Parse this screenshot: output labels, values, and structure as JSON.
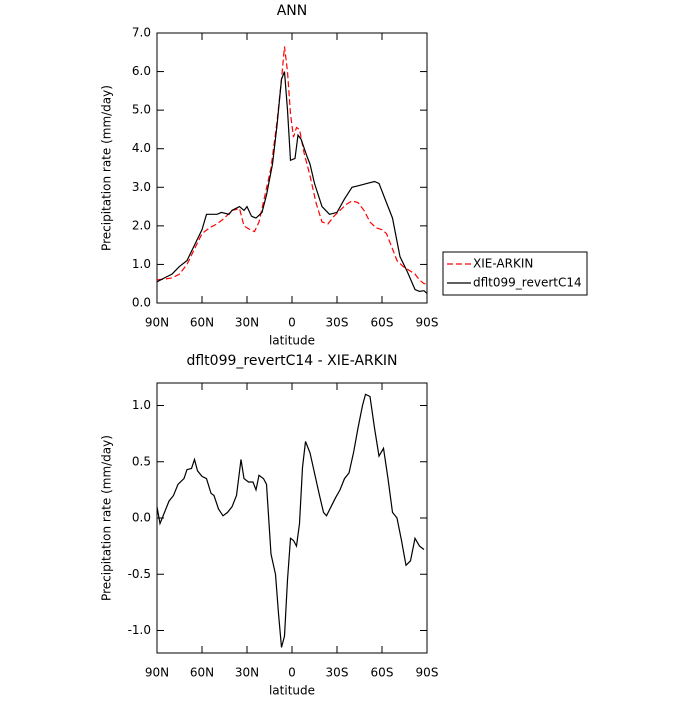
{
  "chart_data": [
    {
      "type": "line",
      "title": "ANN",
      "xlabel": "latitude",
      "ylabel": "Precipitation rate (mm/day)",
      "xlim": [
        90,
        -90
      ],
      "ylim": [
        0,
        7
      ],
      "xticks": [
        {
          "value": 90,
          "label": "90N"
        },
        {
          "value": 60,
          "label": "60N"
        },
        {
          "value": 30,
          "label": "30N"
        },
        0,
        {
          "value": -30,
          "label": "30S"
        },
        {
          "value": -60,
          "label": "60S"
        },
        {
          "value": -90,
          "label": "90S"
        }
      ],
      "yticks": [
        {
          "value": 0,
          "label": "0.0"
        },
        {
          "value": 1,
          "label": "1.0"
        },
        {
          "value": 2,
          "label": "2.0"
        },
        {
          "value": 3,
          "label": "3.0"
        },
        {
          "value": 4,
          "label": "4.0"
        },
        {
          "value": 5,
          "label": "5.0"
        },
        {
          "value": 6,
          "label": "6.0"
        },
        {
          "value": 7,
          "label": "7.0"
        }
      ],
      "legend": "right",
      "series": [
        {
          "name": "XIE-ARKIN",
          "color": "#ff0000",
          "dash": true,
          "x": [
            90,
            85,
            80,
            75,
            70,
            65,
            60,
            55,
            50,
            45,
            40,
            35,
            32,
            28,
            25,
            22,
            18,
            14,
            10,
            7,
            5,
            3,
            1,
            -1,
            -3,
            -5,
            -8,
            -12,
            -16,
            -20,
            -24,
            -28,
            -32,
            -36,
            -40,
            -44,
            -48,
            -52,
            -56,
            -60,
            -63,
            -67,
            -70,
            -74,
            -78,
            -82,
            -85,
            -88,
            -90
          ],
          "values": [
            0.6,
            0.62,
            0.65,
            0.75,
            1.0,
            1.4,
            1.8,
            1.95,
            2.05,
            2.2,
            2.4,
            2.45,
            2.0,
            1.9,
            1.85,
            2.1,
            2.8,
            3.5,
            4.7,
            5.8,
            6.65,
            6.0,
            4.9,
            4.3,
            4.55,
            4.5,
            3.9,
            3.3,
            2.6,
            2.1,
            2.05,
            2.25,
            2.4,
            2.55,
            2.65,
            2.6,
            2.4,
            2.1,
            1.95,
            1.9,
            1.8,
            1.4,
            1.1,
            0.95,
            0.85,
            0.75,
            0.6,
            0.5,
            0.5
          ]
        },
        {
          "name": "dflt099_revertC14",
          "color": "#000000",
          "dash": false,
          "x": [
            90,
            85,
            80,
            75,
            70,
            65,
            60,
            57,
            50,
            47,
            42,
            40,
            35,
            32,
            30,
            27,
            24,
            20,
            17,
            13,
            10,
            7,
            5,
            3,
            1,
            -2,
            -4,
            -6,
            -10,
            -12,
            -15,
            -20,
            -25,
            -30,
            -35,
            -40,
            -45,
            -50,
            -55,
            -58,
            -62,
            -67,
            -72,
            -77,
            -82,
            -85,
            -88,
            -90
          ],
          "values": [
            0.55,
            0.65,
            0.75,
            0.95,
            1.1,
            1.5,
            1.9,
            2.3,
            2.3,
            2.35,
            2.3,
            2.4,
            2.5,
            2.4,
            2.5,
            2.25,
            2.2,
            2.35,
            2.8,
            3.6,
            4.6,
            5.8,
            6.0,
            5.0,
            3.7,
            3.75,
            4.35,
            4.25,
            3.8,
            3.6,
            3.1,
            2.5,
            2.3,
            2.35,
            2.7,
            3.0,
            3.05,
            3.1,
            3.15,
            3.1,
            2.7,
            2.2,
            1.2,
            0.8,
            0.35,
            0.3,
            0.32,
            0.25
          ]
        }
      ]
    },
    {
      "type": "line",
      "title": "dflt099_revertC14 - XIE-ARKIN",
      "xlabel": "latitude",
      "ylabel": "Precipitation rate (mm/day)",
      "xlim": [
        90,
        -90
      ],
      "ylim": [
        -1.2,
        1.2
      ],
      "xticks": [
        {
          "value": 90,
          "label": "90N"
        },
        {
          "value": 60,
          "label": "60N"
        },
        {
          "value": 30,
          "label": "30N"
        },
        0,
        {
          "value": -30,
          "label": "30S"
        },
        {
          "value": -60,
          "label": "60S"
        },
        {
          "value": -90,
          "label": "90S"
        }
      ],
      "yticks": [
        {
          "value": -1,
          "label": "-1.0"
        },
        -0.5,
        {
          "value": 0,
          "label": "0.0"
        },
        0.5,
        {
          "value": 1,
          "label": "1.0"
        }
      ],
      "color": "#000000",
      "x": [
        90,
        88,
        85,
        82,
        79,
        76,
        72,
        70,
        67,
        65,
        63,
        60,
        57,
        54,
        52,
        49,
        46,
        43,
        40,
        37,
        34,
        32,
        29,
        26,
        24,
        22,
        19,
        17,
        14,
        11,
        9,
        7,
        5,
        3,
        1,
        -1,
        -3,
        -5,
        -7,
        -9,
        -12,
        -15,
        -18,
        -21,
        -23,
        -26,
        -29,
        -32,
        -35,
        -38,
        -41,
        -44,
        -47,
        -49,
        -52,
        -55,
        -58,
        -61,
        -64,
        -67,
        -70,
        -73,
        -76,
        -79,
        -82,
        -85,
        -88
      ],
      "values": [
        0.1,
        -0.05,
        0.05,
        0.15,
        0.2,
        0.3,
        0.35,
        0.43,
        0.44,
        0.52,
        0.42,
        0.37,
        0.35,
        0.22,
        0.2,
        0.08,
        0.02,
        0.05,
        0.1,
        0.2,
        0.52,
        0.35,
        0.32,
        0.32,
        0.25,
        0.38,
        0.35,
        0.3,
        -0.32,
        -0.5,
        -0.85,
        -1.15,
        -1.05,
        -0.55,
        -0.18,
        -0.2,
        -0.25,
        -0.05,
        0.45,
        0.68,
        0.58,
        0.4,
        0.22,
        0.05,
        0.02,
        0.1,
        0.18,
        0.25,
        0.35,
        0.4,
        0.58,
        0.8,
        1.0,
        1.1,
        1.08,
        0.8,
        0.55,
        0.62,
        0.35,
        0.05,
        0.0,
        -0.2,
        -0.42,
        -0.38,
        -0.18,
        -0.25,
        -0.28
      ]
    }
  ]
}
